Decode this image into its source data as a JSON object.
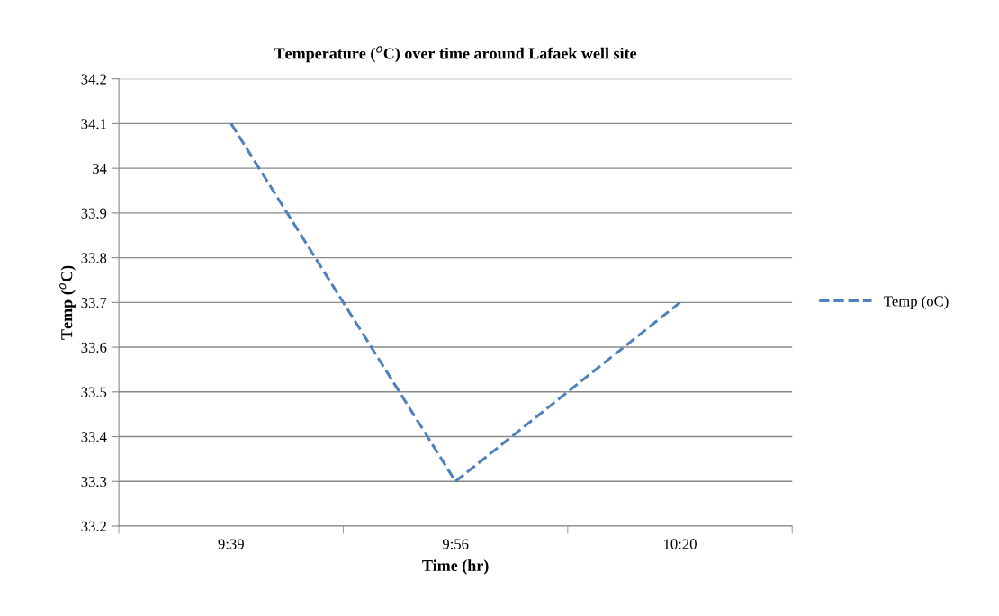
{
  "chart_data": {
    "type": "line",
    "title": "Temperature ($^{o}$C) over time around Lafaek well site",
    "xlabel": "Time (hr)",
    "ylabel": "Temp ($^{o}$C)",
    "categories": [
      "9:39",
      "9:56",
      "10:20"
    ],
    "series": [
      {
        "name": "Temp (oC)",
        "color": "#4f81bd",
        "values": [
          34.1,
          33.3,
          33.7
        ]
      }
    ],
    "ylim": [
      33.2,
      34.2
    ],
    "yticks": [
      {
        "value": 33.2,
        "label": "33.2"
      },
      {
        "value": 33.3,
        "label": "33.3"
      },
      {
        "value": 33.4,
        "label": "33.4"
      },
      {
        "value": 33.5,
        "label": "33.5"
      },
      {
        "value": 33.6,
        "label": "33.6"
      },
      {
        "value": 33.7,
        "label": "33.7"
      },
      {
        "value": 33.8,
        "label": "33.8"
      },
      {
        "value": 33.9,
        "label": "33.9"
      },
      {
        "value": 34,
        "label": "34"
      },
      {
        "value": 34.1,
        "label": "34.1"
      },
      {
        "value": 34.2,
        "label": "34.2"
      }
    ],
    "grid": "y",
    "legend": "right",
    "line_style": "dashed",
    "marker": "none"
  }
}
